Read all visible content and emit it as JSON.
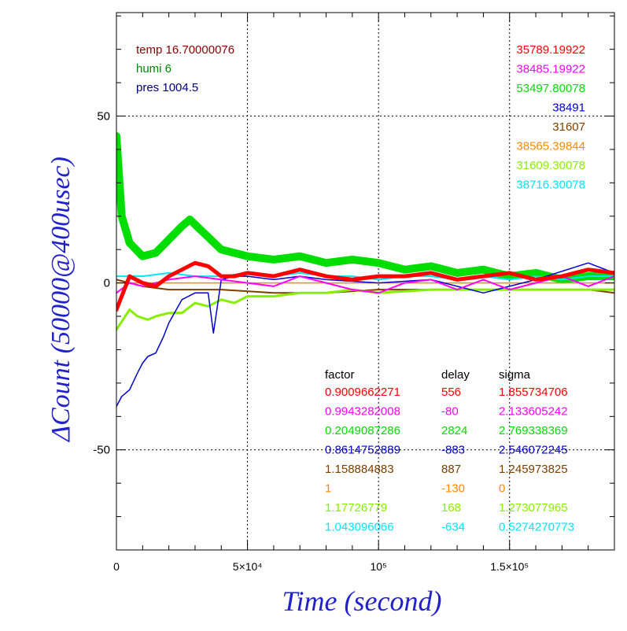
{
  "chart_data": {
    "type": "line",
    "xlabel": "Time (second)",
    "ylabel": "ΔCount (50000@400usec)",
    "xlim": [
      0,
      190000
    ],
    "ylim": [
      -80,
      81
    ],
    "xticks": [
      {
        "value": 0,
        "label": "0"
      },
      {
        "value": 50000,
        "label": "5×10⁴"
      },
      {
        "value": 100000,
        "label": "10⁵"
      },
      {
        "value": 150000,
        "label": "1.5×10⁵"
      }
    ],
    "yticks": [
      {
        "value": 50,
        "label": "50"
      },
      {
        "value": 0,
        "label": "0"
      },
      {
        "value": -50,
        "label": "-50"
      }
    ],
    "grid": true,
    "env": [
      {
        "label": "temp 16.70000076",
        "color": "#8b0000"
      },
      {
        "label": "humi 6",
        "color": "#008800"
      },
      {
        "label": "pres 1004.5",
        "color": "#000080"
      }
    ],
    "table_headers": [
      "factor",
      "delay",
      "sigma"
    ],
    "series": [
      {
        "color": "#ff0000",
        "base": "35789.19922",
        "factor": "0.9009662271",
        "delay": "556",
        "sigma": "1.855734706",
        "x": [
          0,
          5000,
          10000,
          15000,
          20000,
          25000,
          30000,
          35000,
          40000,
          45000,
          50000,
          60000,
          70000,
          80000,
          90000,
          100000,
          110000,
          120000,
          130000,
          140000,
          150000,
          160000,
          170000,
          180000,
          190000
        ],
        "y": [
          -8,
          2,
          0,
          -1,
          2,
          4,
          6,
          5,
          2,
          2,
          3,
          2,
          4,
          2,
          1,
          2,
          2,
          3,
          1,
          2,
          3,
          1,
          2,
          4,
          3
        ]
      },
      {
        "color": "#ff00ff",
        "base": "38485.19922",
        "factor": "0.9943282008",
        "delay": "-80",
        "sigma": "2.133605242",
        "x": [
          0,
          5000,
          10000,
          20000,
          30000,
          40000,
          50000,
          60000,
          70000,
          80000,
          90000,
          100000,
          110000,
          120000,
          130000,
          140000,
          150000,
          160000,
          170000,
          180000,
          190000
        ],
        "y": [
          -3,
          0,
          -1,
          1,
          2,
          1,
          0,
          -1,
          2,
          0,
          -2,
          -3,
          0,
          1,
          -2,
          1,
          -2,
          0,
          2,
          -1,
          2
        ]
      },
      {
        "color": "#00dd00",
        "base": "53497.80078",
        "factor": "0.2049087286",
        "delay": "2824",
        "sigma": "2.769338369",
        "x": [
          0,
          2000,
          5000,
          10000,
          15000,
          20000,
          25000,
          28000,
          32000,
          40000,
          50000,
          60000,
          70000,
          80000,
          90000,
          100000,
          110000,
          120000,
          130000,
          140000,
          150000,
          160000,
          170000,
          180000,
          190000
        ],
        "y": [
          44,
          20,
          12,
          8,
          9,
          13,
          17,
          19,
          16,
          10,
          8,
          7,
          8,
          6,
          7,
          6,
          4,
          5,
          3,
          4,
          2,
          3,
          1,
          2,
          2
        ]
      },
      {
        "color": "#0000cc",
        "base": "38491",
        "factor": "0.8614752889",
        "delay": "-883",
        "sigma": "2.546072245",
        "x": [
          0,
          2000,
          5000,
          8000,
          10000,
          12000,
          15000,
          18000,
          20000,
          25000,
          30000,
          35000,
          37000,
          40000,
          45000,
          50000,
          60000,
          70000,
          80000,
          100000,
          120000,
          140000,
          160000,
          180000,
          190000
        ],
        "y": [
          -37,
          -34,
          -32,
          -27,
          -24,
          -22,
          -21,
          -16,
          -12,
          -5,
          -3,
          -3,
          -15,
          1,
          2,
          2,
          1,
          2,
          1,
          0,
          1,
          -3,
          1,
          6,
          3
        ]
      },
      {
        "color": "#7b3f00",
        "base": "31607",
        "factor": "1.158884883",
        "delay": "887",
        "sigma": "1.245973825",
        "x": [
          0,
          10000,
          20000,
          40000,
          60000,
          80000,
          100000,
          120000,
          140000,
          160000,
          180000,
          190000
        ],
        "y": [
          1,
          -1,
          -2,
          -2,
          -3,
          -3,
          -2,
          -2,
          -2,
          -2,
          -2,
          -3
        ]
      },
      {
        "color": "#ff8800",
        "base": "38565.39844",
        "factor": "1",
        "delay": "-130",
        "sigma": "0",
        "x": [
          0,
          190000
        ],
        "y": [
          0,
          0
        ]
      },
      {
        "color": "#88ee00",
        "base": "31609.30078",
        "factor": "1.17726779",
        "delay": "168",
        "sigma": "1.273077965",
        "x": [
          0,
          5000,
          8000,
          12000,
          15000,
          20000,
          25000,
          30000,
          35000,
          40000,
          45000,
          50000,
          60000,
          70000,
          80000,
          90000,
          100000,
          120000,
          140000,
          160000,
          180000,
          190000
        ],
        "y": [
          -14,
          -8,
          -10,
          -11,
          -10,
          -9,
          -9,
          -6,
          -7,
          -5,
          -6,
          -4,
          -4,
          -3,
          -3,
          -2,
          -3,
          -2,
          -2,
          -2,
          -2,
          -2
        ]
      },
      {
        "color": "#00e5ff",
        "base": "38716.30078",
        "factor": "1.043096066",
        "delay": "-634",
        "sigma": "0.5274270773",
        "x": [
          0,
          10000,
          20000,
          30000,
          40000,
          50000,
          60000,
          70000,
          80000,
          90000,
          100000,
          110000,
          120000,
          130000,
          140000,
          150000,
          160000,
          170000,
          180000,
          190000
        ],
        "y": [
          2,
          2,
          3,
          2,
          2,
          3,
          2,
          3,
          2,
          2,
          1,
          2,
          2,
          1,
          2,
          1,
          2,
          1,
          2,
          2
        ]
      }
    ]
  }
}
